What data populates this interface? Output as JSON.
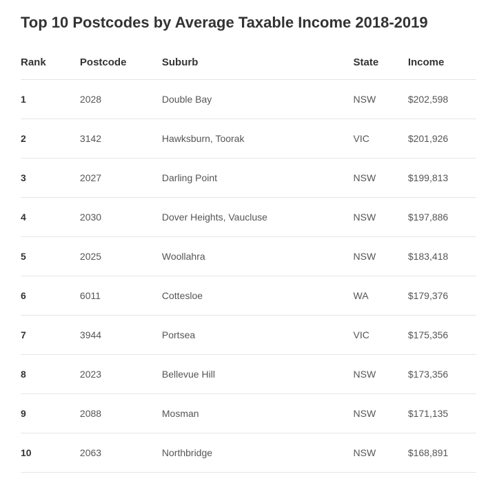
{
  "title": "Top 10 Postcodes by Average Taxable Income 2018-2019",
  "columns": [
    "Rank",
    "Postcode",
    "Suburb",
    "State",
    "Income"
  ],
  "rows": [
    {
      "rank": "1",
      "postcode": "2028",
      "suburb": "Double Bay",
      "state": "NSW",
      "income": "$202,598"
    },
    {
      "rank": "2",
      "postcode": "3142",
      "suburb": "Hawksburn, Toorak",
      "state": "VIC",
      "income": "$201,926"
    },
    {
      "rank": "3",
      "postcode": "2027",
      "suburb": "Darling Point",
      "state": "NSW",
      "income": "$199,813"
    },
    {
      "rank": "4",
      "postcode": "2030",
      "suburb": "Dover Heights, Vaucluse",
      "state": "NSW",
      "income": "$197,886"
    },
    {
      "rank": "5",
      "postcode": "2025",
      "suburb": "Woollahra",
      "state": "NSW",
      "income": "$183,418"
    },
    {
      "rank": "6",
      "postcode": "6011",
      "suburb": "Cottesloe",
      "state": "WA",
      "income": "$179,376"
    },
    {
      "rank": "7",
      "postcode": "3944",
      "suburb": "Portsea",
      "state": "VIC",
      "income": "$175,356"
    },
    {
      "rank": "8",
      "postcode": "2023",
      "suburb": "Bellevue Hill",
      "state": "NSW",
      "income": "$173,356"
    },
    {
      "rank": "9",
      "postcode": "2088",
      "suburb": "Mosman",
      "state": "NSW",
      "income": "$171,135"
    },
    {
      "rank": "10",
      "postcode": "2063",
      "suburb": "Northbridge",
      "state": "NSW",
      "income": "$168,891"
    }
  ],
  "styling": {
    "background_color": "#ffffff",
    "title_fontsize": 22,
    "title_color": "#333333",
    "header_fontsize": 15,
    "header_color": "#333333",
    "cell_fontsize": 14,
    "cell_color": "#555555",
    "border_color": "#e5e5e5",
    "rank_fontweight": 700,
    "column_widths": [
      "13%",
      "18%",
      "42%",
      "12%",
      "15%"
    ]
  }
}
